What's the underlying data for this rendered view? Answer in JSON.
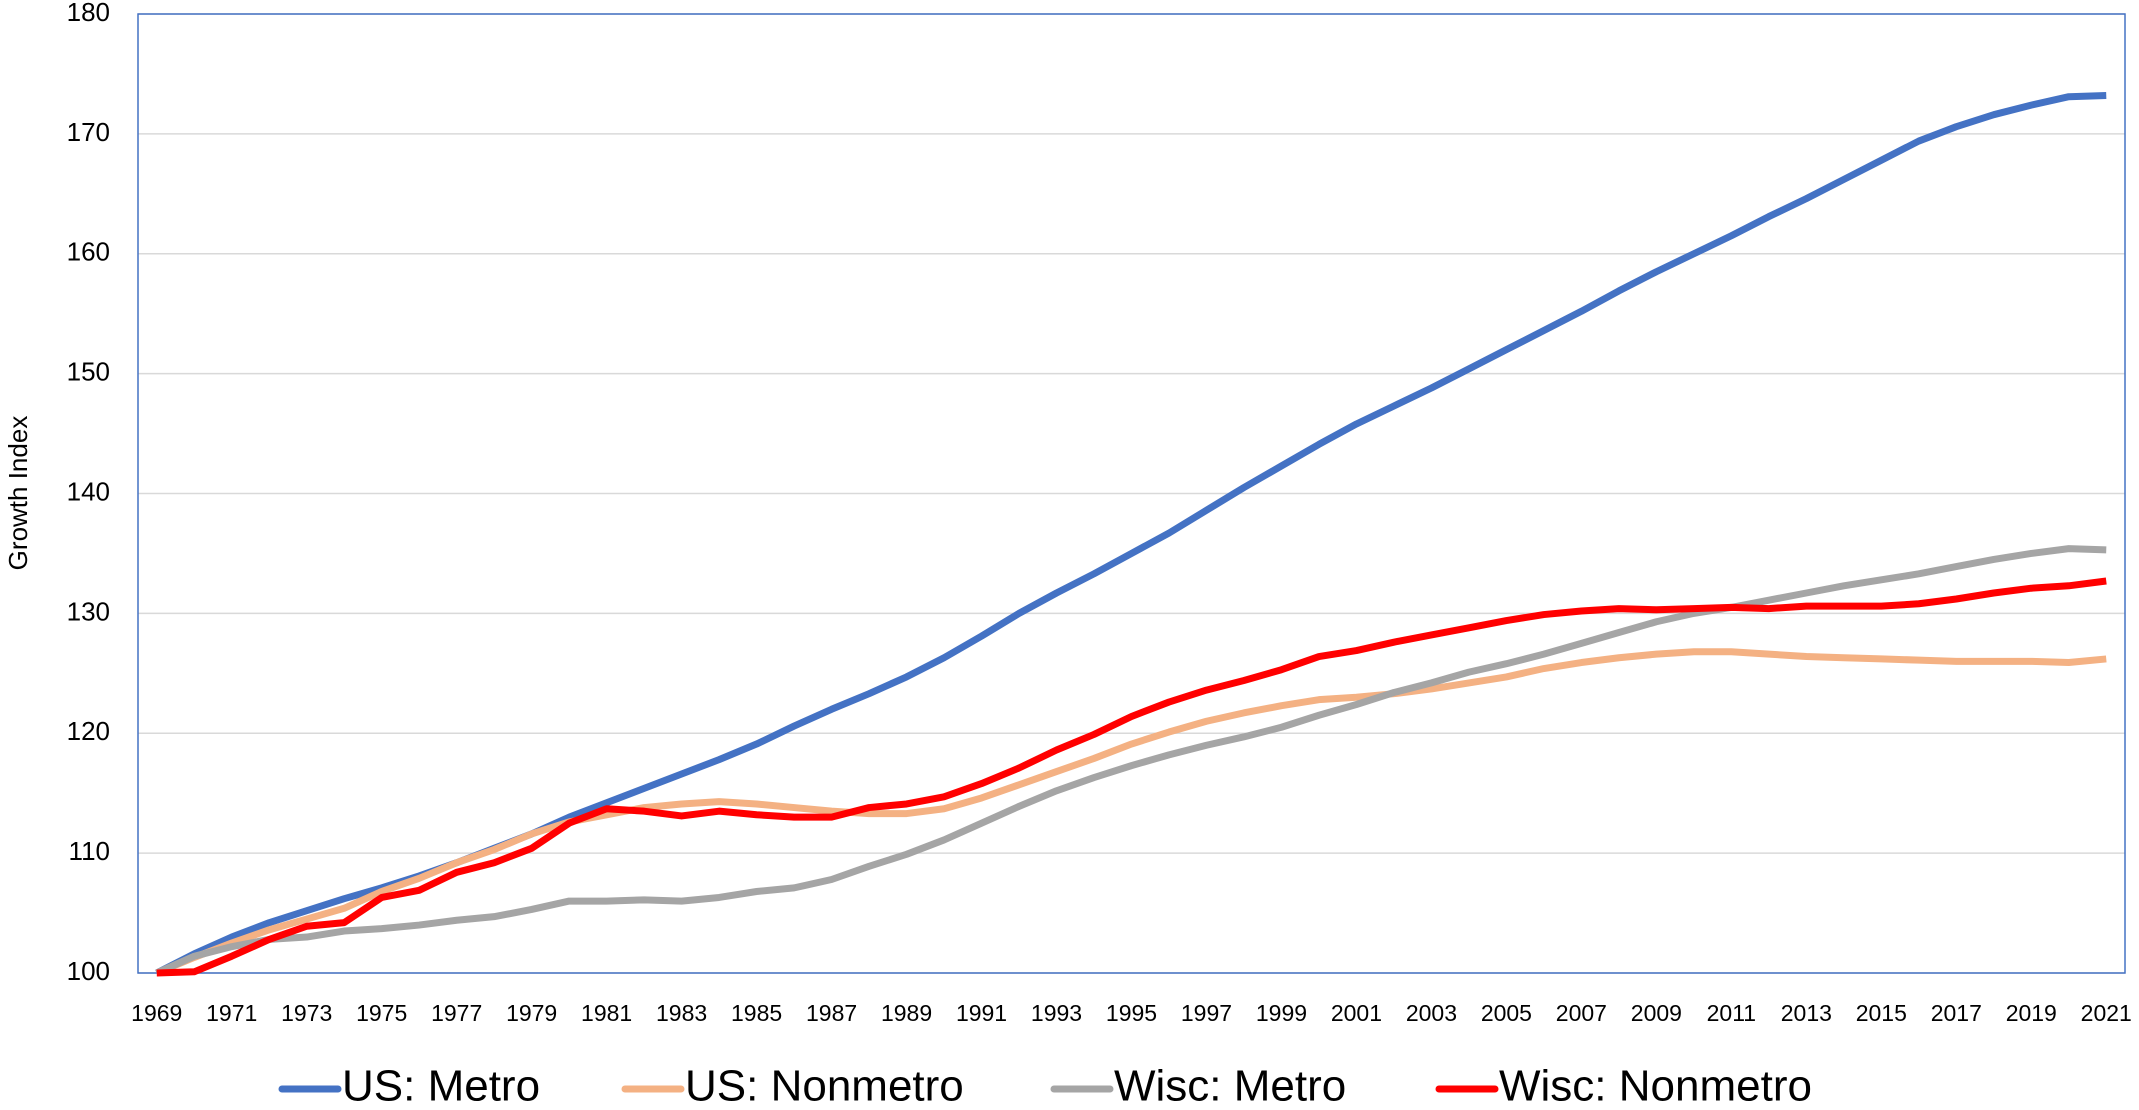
{
  "chart_data": {
    "type": "line",
    "y_label": "Growth Index",
    "categories": [
      "1969",
      null,
      "1971",
      null,
      "1973",
      null,
      "1975",
      null,
      "1977",
      null,
      "1979",
      null,
      "1981",
      null,
      "1983",
      null,
      "1985",
      null,
      "1987",
      null,
      "1989",
      null,
      "1991",
      null,
      "1993",
      null,
      "1995",
      null,
      "1997",
      null,
      "1999",
      null,
      "2001",
      null,
      "2003",
      null,
      "2005",
      null,
      "2007",
      null,
      "2009",
      null,
      "2011",
      null,
      "2013",
      null,
      "2015",
      null,
      "2017",
      null,
      "2019",
      null,
      "2021"
    ],
    "series": [
      {
        "name": "US: Metro",
        "color": "#4472c4",
        "values": [
          100,
          101.6,
          103,
          104.2,
          105.2,
          106.2,
          107.1,
          108.1,
          109.2,
          110.4,
          111.6,
          113,
          114.2,
          115.4,
          116.6,
          117.8,
          119.1,
          120.6,
          122,
          123.3,
          124.7,
          126.3,
          128.1,
          130,
          131.7,
          133.3,
          135,
          136.7,
          138.6,
          140.5,
          142.3,
          144.1,
          145.8,
          147.3,
          148.8,
          150.4,
          152,
          153.6,
          155.2,
          156.9,
          158.5,
          160,
          161.5,
          163.1,
          164.6,
          166.2,
          167.8,
          169.4,
          170.6,
          171.6,
          172.4,
          173.1,
          173.2
        ]
      },
      {
        "name": "US: Nonmetro",
        "color": "#f4b183",
        "values": [
          100,
          101.3,
          102.5,
          103.6,
          104.5,
          105.4,
          106.8,
          107.9,
          109.2,
          110.3,
          111.6,
          112.6,
          113.2,
          113.8,
          114.1,
          114.3,
          114.1,
          113.8,
          113.5,
          113.3,
          113.3,
          113.7,
          114.6,
          115.7,
          116.8,
          117.9,
          119.1,
          120.1,
          121,
          121.7,
          122.3,
          122.8,
          123,
          123.3,
          123.7,
          124.2,
          124.7,
          125.4,
          125.9,
          126.3,
          126.6,
          126.8,
          126.8,
          126.6,
          126.4,
          126.3,
          126.2,
          126.1,
          126.0,
          126.0,
          126.0,
          125.9,
          126.2
        ]
      },
      {
        "name": "Wisc: Metro",
        "color": "#a5a5a5",
        "values": [
          100,
          101.4,
          102.2,
          102.8,
          103,
          103.5,
          103.7,
          104,
          104.4,
          104.7,
          105.3,
          106,
          106,
          106.1,
          106,
          106.3,
          106.8,
          107.1,
          107.8,
          108.9,
          109.9,
          111.1,
          112.5,
          113.9,
          115.2,
          116.3,
          117.3,
          118.2,
          119,
          119.7,
          120.5,
          121.5,
          122.4,
          123.4,
          124.2,
          125.1,
          125.8,
          126.6,
          127.5,
          128.4,
          129.3,
          130,
          130.5,
          131.1,
          131.7,
          132.3,
          132.8,
          133.3,
          133.9,
          134.5,
          135,
          135.4,
          135.3
        ]
      },
      {
        "name": "Wisc: Nonmetro",
        "color": "#ff0000",
        "values": [
          100,
          100.1,
          101.4,
          102.8,
          103.9,
          104.2,
          106.3,
          106.9,
          108.4,
          109.2,
          110.4,
          112.5,
          113.7,
          113.5,
          113.1,
          113.5,
          113.2,
          113,
          113,
          113.8,
          114.1,
          114.7,
          115.8,
          117.1,
          118.6,
          119.9,
          121.4,
          122.6,
          123.6,
          124.4,
          125.3,
          126.4,
          126.9,
          127.6,
          128.2,
          128.8,
          129.4,
          129.9,
          130.2,
          130.4,
          130.3,
          130.4,
          130.5,
          130.4,
          130.6,
          130.6,
          130.6,
          130.8,
          131.2,
          131.7,
          132.1,
          132.3,
          132.7
        ]
      }
    ],
    "ylim": [
      100,
      180
    ],
    "yticks": [
      100,
      110,
      120,
      130,
      140,
      150,
      160,
      170,
      180
    ],
    "grid": true,
    "legend": "bottom"
  }
}
